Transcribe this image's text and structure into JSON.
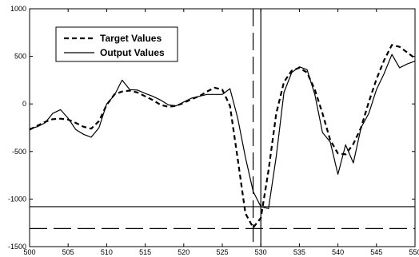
{
  "chart_data": {
    "type": "line",
    "title": "",
    "xlabel": "",
    "ylabel": "",
    "xlim": [
      500,
      550
    ],
    "ylim": [
      -1500,
      1000
    ],
    "xticks": [
      500,
      505,
      510,
      515,
      520,
      525,
      530,
      535,
      540,
      545,
      550
    ],
    "yticks": [
      -1500,
      -1000,
      -500,
      0,
      500,
      1000
    ],
    "grid": false,
    "legend_position": "top-left",
    "series": [
      {
        "name": "Target Values",
        "style": "dashed",
        "color": "#000000",
        "x": [
          500,
          501,
          502,
          503,
          504,
          505,
          506,
          507,
          508,
          509,
          510,
          511,
          512,
          513,
          514,
          515,
          516,
          517,
          518,
          519,
          520,
          521,
          522,
          523,
          524,
          525,
          526,
          527,
          528,
          529,
          530,
          531,
          532,
          533,
          534,
          535,
          536,
          537,
          538,
          539,
          540,
          541,
          542,
          543,
          544,
          545,
          546,
          547,
          548,
          549,
          550
        ],
        "y": [
          -270,
          -230,
          -190,
          -160,
          -155,
          -165,
          -200,
          -240,
          -260,
          -180,
          -10,
          100,
          130,
          140,
          120,
          80,
          40,
          -10,
          -30,
          -20,
          10,
          50,
          80,
          130,
          170,
          150,
          -20,
          -580,
          -1150,
          -1300,
          -1200,
          -700,
          -100,
          230,
          350,
          380,
          330,
          150,
          -100,
          -380,
          -520,
          -530,
          -420,
          -250,
          20,
          260,
          460,
          620,
          600,
          540,
          480
        ]
      },
      {
        "name": "Output Values",
        "style": "solid",
        "color": "#000000",
        "x": [
          500,
          501,
          502,
          503,
          504,
          505,
          506,
          507,
          508,
          509,
          510,
          511,
          512,
          513,
          514,
          515,
          516,
          517,
          518,
          519,
          520,
          521,
          522,
          523,
          524,
          525,
          526,
          527,
          528,
          529,
          530,
          531,
          532,
          533,
          534,
          535,
          536,
          537,
          538,
          539,
          540,
          541,
          542,
          543,
          544,
          545,
          546,
          547,
          548,
          549,
          550
        ],
        "y": [
          -260,
          -240,
          -200,
          -100,
          -60,
          -150,
          -270,
          -320,
          -350,
          -250,
          0,
          90,
          250,
          150,
          145,
          110,
          80,
          40,
          -10,
          -20,
          20,
          60,
          80,
          100,
          100,
          100,
          160,
          -150,
          -560,
          -920,
          -1080,
          -1100,
          -550,
          120,
          330,
          390,
          360,
          100,
          -300,
          -400,
          -740,
          -430,
          -620,
          -250,
          -100,
          150,
          320,
          520,
          380,
          420,
          450
        ]
      }
    ],
    "reference_lines": {
      "vertical_solid_x": 530,
      "vertical_dashed_x": 529,
      "horizontal_solid_y": -1080,
      "horizontal_dashed_y": -1310
    }
  }
}
